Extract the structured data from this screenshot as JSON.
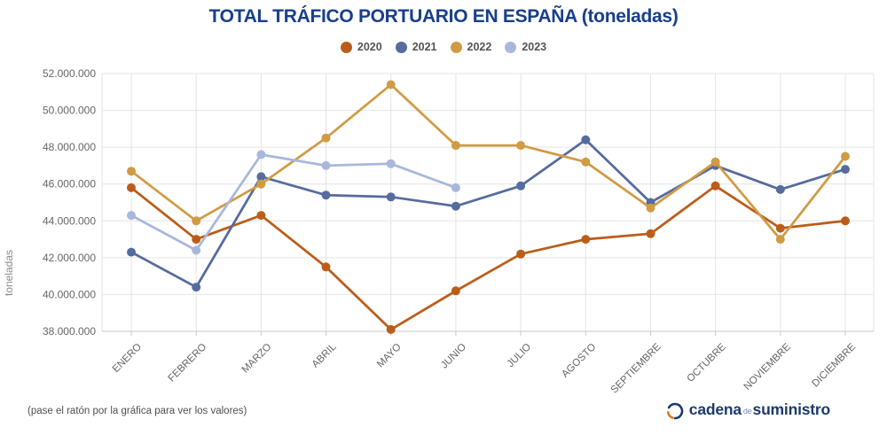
{
  "title": "TOTAL TRÁFICO PORTUARIO EN ESPAÑA (toneladas)",
  "legend": [
    {
      "label": "2020",
      "color": "#bb5d1a"
    },
    {
      "label": "2021",
      "color": "#566b9e"
    },
    {
      "label": "2022",
      "color": "#d19b44"
    },
    {
      "label": "2023",
      "color": "#a8b7dc"
    }
  ],
  "chart_data": {
    "type": "line",
    "title": "TOTAL TRÁFICO PORTUARIO EN ESPAÑA (toneladas)",
    "ylabel": "toneladas",
    "values_unit": "millones de toneladas (estimado de la gráfica)",
    "grid": true,
    "legend_position": "top",
    "ylim": [
      38,
      52
    ],
    "y_ticks": [
      "52.000.000",
      "50.000.000",
      "48.000.000",
      "46.000.000",
      "44.000.000",
      "42.000.000",
      "40.000.000",
      "38.000.000"
    ],
    "categories": [
      "ENERO",
      "FEBRERO",
      "MARZO",
      "ABRIL",
      "MAYO",
      "JUNIO",
      "JULIO",
      "AGOSTO",
      "SEPTIEMBRE",
      "OCTUBRE",
      "NOVIEMBRE",
      "DICIEMBRE"
    ],
    "series": [
      {
        "name": "2020",
        "color": "#bb5d1a",
        "values": [
          45.8,
          43.0,
          44.3,
          41.5,
          38.1,
          40.2,
          42.2,
          43.0,
          43.3,
          45.9,
          43.6,
          44.0
        ]
      },
      {
        "name": "2021",
        "color": "#566b9e",
        "values": [
          42.3,
          40.4,
          46.4,
          45.4,
          45.3,
          44.8,
          45.9,
          48.4,
          45.0,
          47.0,
          45.7,
          46.8
        ]
      },
      {
        "name": "2022",
        "color": "#d19b44",
        "values": [
          46.7,
          44.0,
          46.0,
          48.5,
          51.4,
          48.1,
          48.1,
          47.2,
          44.7,
          47.2,
          43.0,
          47.5
        ]
      },
      {
        "name": "2023",
        "color": "#a8b7dc",
        "values": [
          44.3,
          42.4,
          47.6,
          47.0,
          47.1,
          45.8,
          null,
          null,
          null,
          null,
          null,
          null
        ]
      }
    ]
  },
  "footer": {
    "note": "(pase el ratón por la gráfica para ver los valores)"
  },
  "logo": {
    "part1": "cadena",
    "part2": "de",
    "part3": "suministro"
  },
  "colors": {
    "title": "#183f8c",
    "grid": "#e4e4e4",
    "axis": "#c9c9c9",
    "tick_text": "#666666",
    "ylabel_text": "#8c8c8c",
    "logo_navy": "#1e3a6d",
    "logo_orange": "#e07820"
  }
}
